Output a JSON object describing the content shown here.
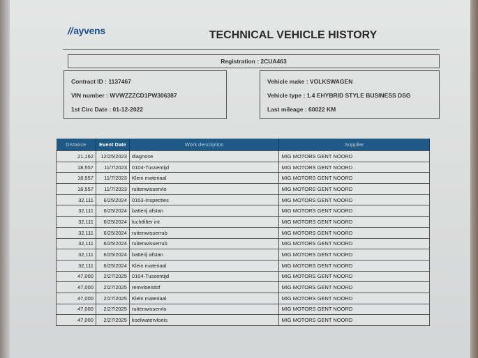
{
  "header": {
    "logo_text": "ayvens",
    "title": "TECHNICAL VEHICLE HISTORY"
  },
  "registration": "Registration : 2CUA463",
  "contract": {
    "contract_id": "Contract ID : 1137467",
    "vin": "VIN number : WVWZZZCD1PW306387",
    "first_circ": "1st Circ Date : 01-12-2022"
  },
  "vehicle": {
    "make": "Vehicle make : VOLKSWAGEN",
    "type": "Vehicle type : 1.4 EHYBRID STYLE BUSINESS DSG",
    "mileage": "Last mileage : 60022 KM"
  },
  "table": {
    "columns": [
      "Distance",
      "Event Date",
      "Work description",
      "Supplier"
    ],
    "rows": [
      [
        "21,162",
        "12/25/2023",
        "diagnose",
        "MIG MOTORS GENT NOORD"
      ],
      [
        "18,557",
        "11/7/2023",
        "0104-Tussentijd",
        "MIG MOTORS GENT NOORD"
      ],
      [
        "18,557",
        "11/7/2023",
        "Klein materiaal",
        "MIG MOTORS GENT NOORD"
      ],
      [
        "18,557",
        "11/7/2023",
        "ruitenwisservlo",
        "MIG MOTORS GENT NOORD"
      ],
      [
        "32,111",
        "6/25/2024",
        "0103-Inspecties",
        "MIG MOTORS GENT NOORD"
      ],
      [
        "32,111",
        "6/25/2024",
        "batterij afstan",
        "MIG MOTORS GENT NOORD"
      ],
      [
        "32,111",
        "6/25/2024",
        "luchtfilter int",
        "MIG MOTORS GENT NOORD"
      ],
      [
        "32,111",
        "6/25/2024",
        "ruitenwisserrub",
        "MIG MOTORS GENT NOORD"
      ],
      [
        "32,111",
        "6/25/2024",
        "ruitenwisserrub",
        "MIG MOTORS GENT NOORD"
      ],
      [
        "32,111",
        "6/25/2024",
        "batterij afstan",
        "MIG MOTORS GENT NOORD"
      ],
      [
        "32,111",
        "6/25/2024",
        "Klein materiaal",
        "MIG MOTORS GENT NOORD"
      ],
      [
        "47,000",
        "2/27/2025",
        "0104-Tussentijd",
        "MIG MOTORS GENT NOORD"
      ],
      [
        "47,000",
        "2/27/2025",
        "remvloeistof",
        "MIG MOTORS GENT NOORD"
      ],
      [
        "47,000",
        "2/27/2025",
        "Klein materiaal",
        "MIG MOTORS GENT NOORD"
      ],
      [
        "47,000",
        "2/27/2025",
        "ruitenwisservlo",
        "MIG MOTORS GENT NOORD"
      ],
      [
        "47,000",
        "2/27/2025",
        "koelwatervloeis",
        "MIG MOTORS GENT NOORD"
      ]
    ]
  },
  "colors": {
    "table_header": "#1e5a85",
    "logo": "#1f4e8c"
  }
}
